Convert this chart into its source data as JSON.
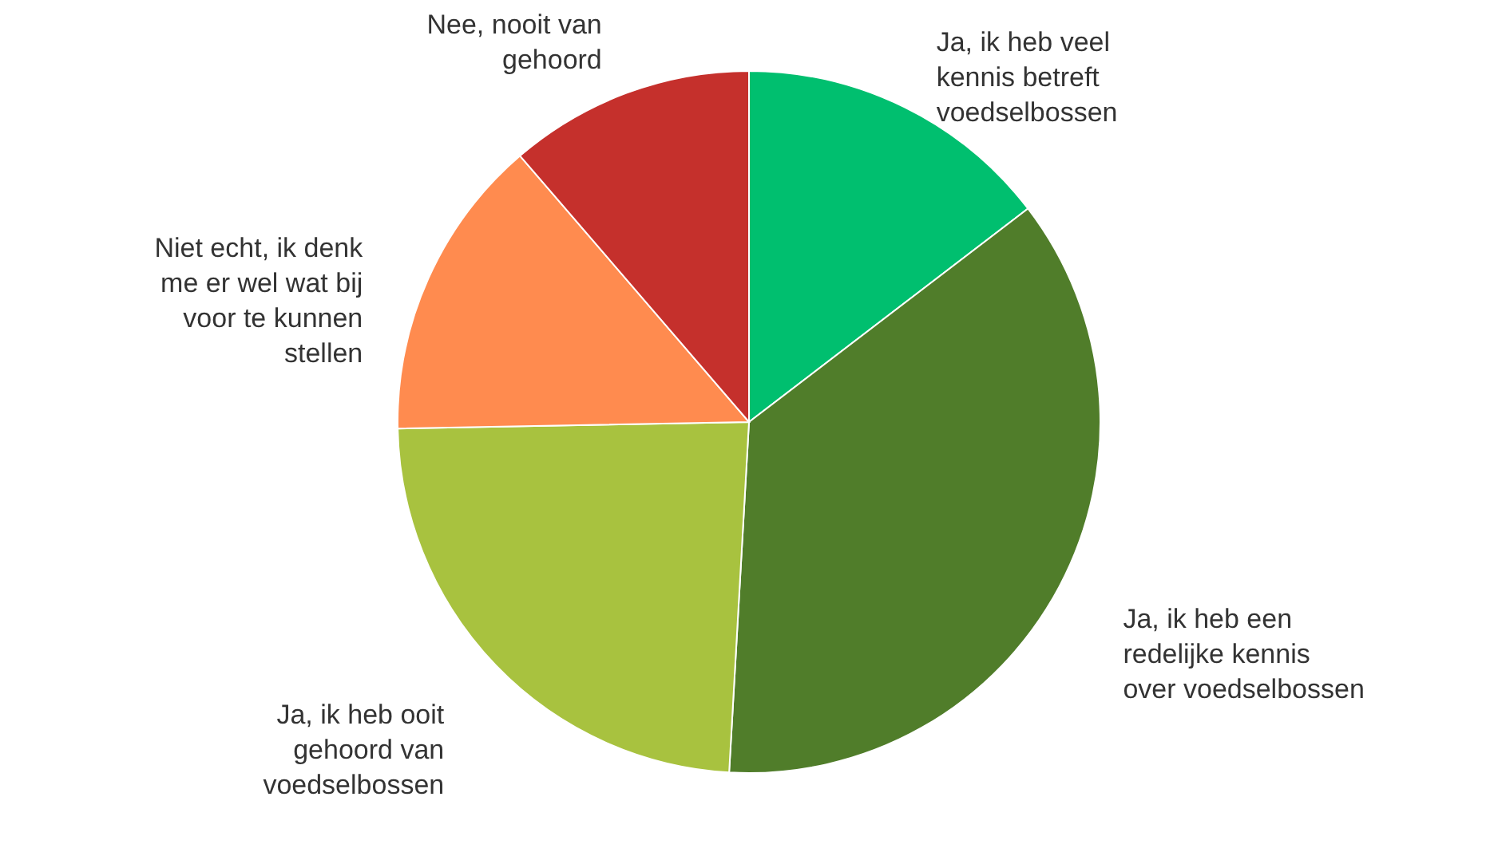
{
  "chart_data": {
    "type": "pie",
    "categories": [
      "Ja, ik heb veel kennis betreft voedselbossen",
      "Ja, ik heb een redelijke kennis over voedselbossen",
      "Ja, ik heb ooit gehoord van voedselbossen",
      "Niet echt, ik denk me er wel wat bij voor te kunnen stellen",
      "Nee, nooit van gehoord"
    ],
    "values": [
      14.6,
      36.3,
      23.8,
      14.0,
      11.3
    ],
    "colors": [
      "#00bf6f",
      "#507d2a",
      "#a8c23f",
      "#ff8b4f",
      "#c5302c"
    ]
  }
}
